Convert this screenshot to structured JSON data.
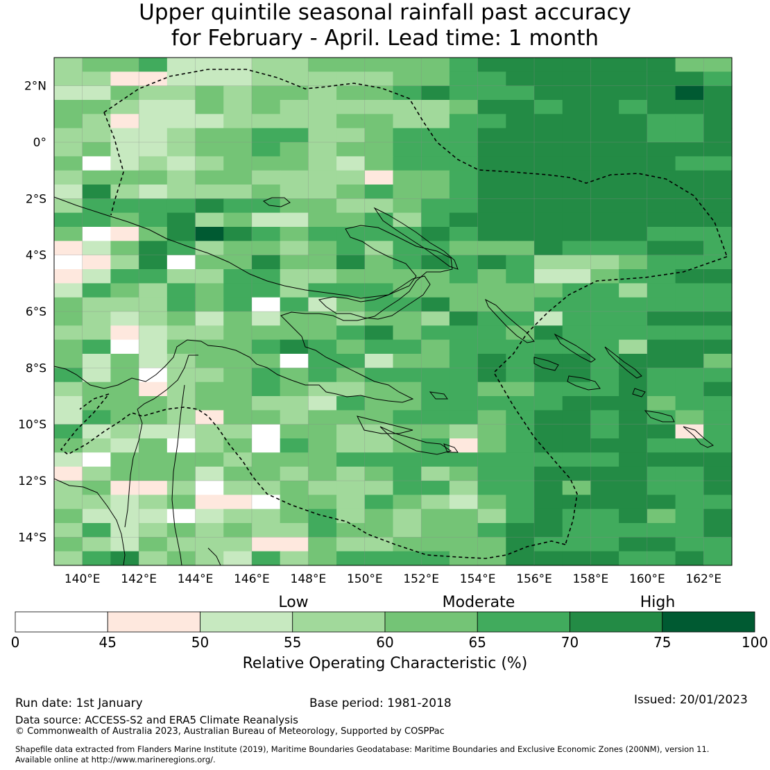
{
  "title": {
    "line1": "Upper quintile seasonal rainfall past accuracy",
    "line2": "for February - April. Lead time: 1 month"
  },
  "map": {
    "lon_range": [
      139,
      163
    ],
    "lat_range": [
      -15,
      3
    ],
    "x_ticks": [
      {
        "value": 140,
        "label": "140°E"
      },
      {
        "value": 142,
        "label": "142°E"
      },
      {
        "value": 144,
        "label": "144°E"
      },
      {
        "value": 146,
        "label": "146°E"
      },
      {
        "value": 148,
        "label": "148°E"
      },
      {
        "value": 150,
        "label": "150°E"
      },
      {
        "value": 152,
        "label": "152°E"
      },
      {
        "value": 154,
        "label": "154°E"
      },
      {
        "value": 156,
        "label": "156°E"
      },
      {
        "value": 158,
        "label": "158°E"
      },
      {
        "value": 160,
        "label": "160°E"
      },
      {
        "value": 162,
        "label": "162°E"
      }
    ],
    "y_ticks": [
      {
        "value": 2,
        "label": "2°N"
      },
      {
        "value": 0,
        "label": "0°"
      },
      {
        "value": -2,
        "label": "2°S"
      },
      {
        "value": -4,
        "label": "4°S"
      },
      {
        "value": -6,
        "label": "6°S"
      },
      {
        "value": -8,
        "label": "8°S"
      },
      {
        "value": -10,
        "label": "10°S"
      },
      {
        "value": -12,
        "label": "12°S"
      },
      {
        "value": -14,
        "label": "14°S"
      }
    ],
    "grid_rows_bins": [
      "344522233444445666666644",
      "331122233333445566666665",
      "224334344344565556666676",
      "443224343333334665665666",
      "431222333344335566666556",
      "332234455334555666666556",
      "342234454344555666666666",
      "402323444324555666666655",
      "344434433331445666666666",
      "263233343345445666666666",
      "355556554433455666666666",
      "554563422445356666666666",
      "401467654555565666666555",
      "124653443453554446555665",
      "013604464464565653334555",
      "125533553344445452245566",
      "254354553555444444553555",
      "433354505245564445555555",
      "432342424434436552555666",
      "331233444456455546555555",
      "450244456545545555553666",
      "424234440552445656656664",
      "524033454545555656656555",
      "344134454334455445556556",
      "244434433254455555666455",
      "254431443444555456656545",
      "523223304433443456656615",
      "432403405433451456666555",
      "204444344455555555556666",
      "134442443434534556666556",
      "341130334333553556466556",
      "332341104435432456666655",
      "422202334534344356556456",
      "352343433544344566555556",
      "432433311433444465556655",
      "356343253455554466665565"
    ],
    "bin_colors": [
      "#ffffff",
      "#fee8de",
      "#c7e9c0",
      "#a1d99b",
      "#74c476",
      "#41ab5d",
      "#238b45",
      "#005a32"
    ]
  },
  "colorbar": {
    "tick_values": [
      0,
      45,
      50,
      55,
      60,
      65,
      70,
      75,
      100
    ],
    "tick_labels": [
      "0",
      "45",
      "50",
      "55",
      "60",
      "65",
      "70",
      "75",
      "100"
    ],
    "colors": [
      "#ffffff",
      "#fee8de",
      "#c7e9c0",
      "#a1d99b",
      "#74c476",
      "#41ab5d",
      "#238b45",
      "#005a32"
    ],
    "category_labels": {
      "low": "Low",
      "moderate": "Moderate",
      "high": "High"
    },
    "title": "Relative Operating Characteristic (%)"
  },
  "footer": {
    "run_date": "Run date: 1st January",
    "base_period": "Base period: 1981-2018",
    "issued": "Issued: 20/01/2023",
    "data_source": "Data source: ACCESS-S2 and ERA5 Climate Reanalysis",
    "copyright": "© Commonwealth of Australia 2023, Australian Bureau of Meteorology, Supported by COSPPac",
    "shapefile_line1": "Shapefile data extracted from Flanders Marine Institute (2019), Maritime Boundaries Geodatabase: Maritime Boundaries and Exclusive Economic Zones (200NM), version 11.",
    "shapefile_line2": "Available online at http://www.marineregions.org/."
  }
}
